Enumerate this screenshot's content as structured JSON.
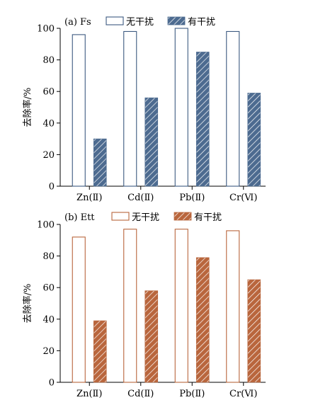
{
  "chart_data": [
    {
      "type": "bar",
      "title": "(a)  Fs",
      "ylabel": "去除率/%",
      "xlabel": "",
      "ylim": [
        0,
        100
      ],
      "yticks": [
        0,
        20,
        40,
        60,
        80,
        100
      ],
      "categories": [
        "Zn(Ⅱ)",
        "Cd(Ⅱ)",
        "Pb(Ⅱ)",
        "Cr(Ⅵ)"
      ],
      "series": [
        {
          "name": "无干扰",
          "values": [
            96,
            98,
            100,
            98
          ],
          "style": "outline",
          "color": "#3d5a80"
        },
        {
          "name": "有干扰",
          "values": [
            30,
            56,
            85,
            59
          ],
          "style": "hatched",
          "color": "#4d6b90"
        }
      ],
      "legend_position": "top"
    },
    {
      "type": "bar",
      "title": "(b)  Ett",
      "ylabel": "去除率/%",
      "xlabel": "",
      "ylim": [
        0,
        100
      ],
      "yticks": [
        0,
        20,
        40,
        60,
        80,
        100
      ],
      "categories": [
        "Zn(Ⅱ)",
        "Cd(Ⅱ)",
        "Pb(Ⅱ)",
        "Cr(Ⅵ)"
      ],
      "series": [
        {
          "name": "无干扰",
          "values": [
            92,
            97,
            97,
            96
          ],
          "style": "outline",
          "color": "#b9663d"
        },
        {
          "name": "有干扰",
          "values": [
            39,
            58,
            79,
            65
          ],
          "style": "hatched",
          "color": "#b9663d"
        }
      ],
      "legend_position": "top"
    }
  ]
}
